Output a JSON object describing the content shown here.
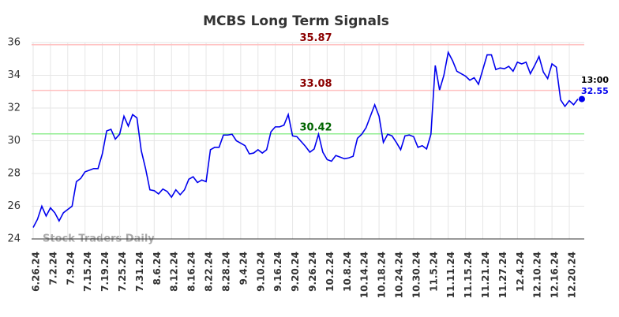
{
  "chart_data": {
    "type": "line",
    "title": "MCBS Long Term Signals",
    "watermark": "Stock Traders Daily",
    "color": "#0000ee",
    "categories": [
      "6.26.24",
      null,
      null,
      null,
      "7.2.24",
      null,
      null,
      null,
      "7.9.24",
      null,
      null,
      null,
      "7.15.24",
      null,
      null,
      null,
      "7.19.24",
      null,
      null,
      null,
      "7.25.24",
      null,
      null,
      null,
      "7.31.24",
      null,
      null,
      null,
      "8.6.24",
      null,
      null,
      null,
      "8.12.24",
      null,
      null,
      null,
      "8.16.24",
      null,
      null,
      null,
      "8.22.24",
      null,
      null,
      null,
      "8.28.24",
      null,
      null,
      null,
      "9.4.24",
      null,
      null,
      null,
      "9.10.24",
      null,
      null,
      null,
      "9.16.24",
      null,
      null,
      null,
      "9.20.24",
      null,
      null,
      null,
      "9.26.24",
      null,
      null,
      null,
      "10.2.24",
      null,
      null,
      null,
      "10.8.24",
      null,
      null,
      null,
      "10.14.24",
      null,
      null,
      null,
      "10.18.24",
      null,
      null,
      null,
      "10.24.24",
      null,
      null,
      null,
      "10.30.24",
      null,
      null,
      null,
      "11.5.24",
      null,
      null,
      null,
      "11.11.24",
      null,
      null,
      null,
      "11.15.24",
      null,
      null,
      null,
      "11.21.24",
      null,
      null,
      null,
      "11.27.24",
      null,
      null,
      null,
      "12.4.24",
      null,
      null,
      null,
      "12.10.24",
      null,
      null,
      null,
      "12.16.24",
      null,
      null,
      null,
      "12.20.24",
      null,
      null
    ],
    "values": [
      24.7,
      25.2,
      26.0,
      25.4,
      25.9,
      25.6,
      25.1,
      25.6,
      25.8,
      26.0,
      27.5,
      27.7,
      28.1,
      28.2,
      28.3,
      28.3,
      29.2,
      30.6,
      30.7,
      30.1,
      30.4,
      31.5,
      30.9,
      31.6,
      31.4,
      29.4,
      28.3,
      27.0,
      26.95,
      26.75,
      27.05,
      26.9,
      26.55,
      27.0,
      26.7,
      27.0,
      27.65,
      27.8,
      27.45,
      27.6,
      27.5,
      29.45,
      29.6,
      29.6,
      30.35,
      30.35,
      30.4,
      30.0,
      29.85,
      29.7,
      29.2,
      29.25,
      29.45,
      29.25,
      29.45,
      30.55,
      30.85,
      30.85,
      30.95,
      31.6,
      30.3,
      30.25,
      29.95,
      29.65,
      29.3,
      29.5,
      30.4,
      29.3,
      28.85,
      28.75,
      29.1,
      29.0,
      28.9,
      28.95,
      29.05,
      30.15,
      30.4,
      30.8,
      31.5,
      32.2,
      31.5,
      29.9,
      30.4,
      30.3,
      29.9,
      29.45,
      30.3,
      30.35,
      30.25,
      29.6,
      29.7,
      29.5,
      30.4,
      34.6,
      33.1,
      34.0,
      35.4,
      34.9,
      34.25,
      34.1,
      33.95,
      33.7,
      33.85,
      33.45,
      34.35,
      35.25,
      35.25,
      34.35,
      34.45,
      34.4,
      34.55,
      34.25,
      34.8,
      34.7,
      34.8,
      34.1,
      34.6,
      35.15,
      34.2,
      33.8,
      34.7,
      34.5,
      32.5,
      32.1,
      32.45,
      32.2,
      32.55
    ],
    "end_label": "13:00",
    "hlines": [
      {
        "value": 35.87,
        "color": "#ffc0c0",
        "label_color": "#8b0000"
      },
      {
        "value": 33.08,
        "color": "#ffc0c0",
        "label_color": "#8b0000"
      },
      {
        "value": 30.42,
        "color": "#90ee90",
        "label_color": "#006400"
      }
    ],
    "ylim": [
      24,
      36
    ],
    "yticks": [
      24,
      26,
      28,
      30,
      32,
      34,
      36
    ],
    "grid": true
  }
}
